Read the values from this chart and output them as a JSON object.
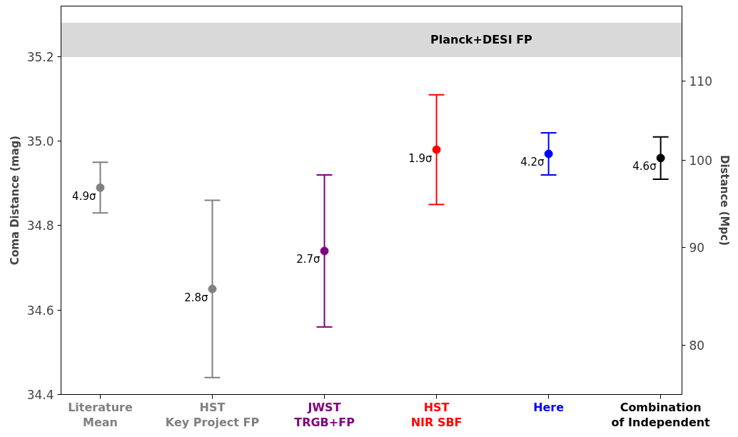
{
  "chart_data": {
    "type": "scatter",
    "ylabel": "Coma Distance (mag)",
    "y2label": "Distance (Mpc)",
    "categories": [
      "Literature\nMean",
      "HST\nKey Project FP",
      "JWST\nTRGB+FP",
      "HST\nNIR SBF",
      "Here",
      "Combination\nof Independent"
    ],
    "values": [
      34.89,
      34.65,
      34.74,
      34.98,
      34.97,
      34.96
    ],
    "errors": [
      [
        34.83,
        34.95
      ],
      [
        34.44,
        34.86
      ],
      [
        34.56,
        34.92
      ],
      [
        34.85,
        35.11
      ],
      [
        34.92,
        35.02
      ],
      [
        34.91,
        35.01
      ]
    ],
    "colors": [
      "#808080",
      "#808080",
      "#800080",
      "#ff0000",
      "#0000ff",
      "#000000"
    ],
    "marker": "circle",
    "ylim": [
      34.4,
      35.32
    ],
    "yticks": [
      34.4,
      34.6,
      34.8,
      {
        "value": 35,
        "label": "35.0"
      },
      35.2
    ],
    "y2lim": [
      75.4,
      120.4
    ],
    "y2ticks": [
      80,
      90,
      100,
      110
    ],
    "log": "y2",
    "bands": [
      {
        "axis": "y",
        "from": 35.2,
        "to": 35.28,
        "label": "Planck+DESI FP",
        "color": "#d9d9d9"
      }
    ],
    "annotations": [
      "4.9σ",
      "2.8σ",
      "2.7σ",
      "1.9σ",
      "4.2σ",
      "4.6σ"
    ]
  }
}
